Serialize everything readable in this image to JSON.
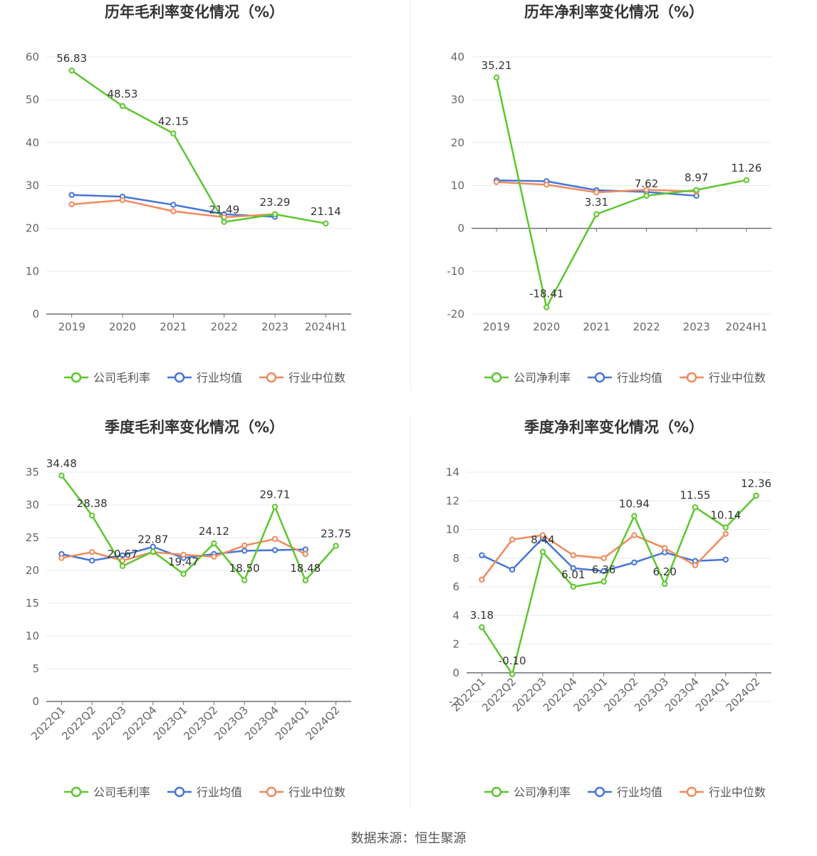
{
  "chart_data": [
    {
      "type": "line",
      "title": "历年毛利率变化情况（%）",
      "categories": [
        "2019",
        "2020",
        "2021",
        "2022",
        "2023",
        "2024H1"
      ],
      "ylim": [
        0,
        60
      ],
      "yticks": [
        0,
        10,
        20,
        30,
        40,
        50,
        60
      ],
      "x_label_rotation": 0,
      "grid": true,
      "legend_position": "bottom",
      "series": [
        {
          "name": "公司毛利率",
          "color": "#5cc72d",
          "values": [
            56.83,
            48.53,
            42.15,
            21.49,
            23.29,
            21.14
          ],
          "labels": [
            "56.83",
            "48.53",
            "42.15",
            "21.49",
            "23.29",
            "21.14"
          ]
        },
        {
          "name": "行业均值",
          "color": "#4575d6",
          "values": [
            27.8,
            27.4,
            25.5,
            23.3,
            22.7,
            null
          ]
        },
        {
          "name": "行业中位数",
          "color": "#f08a5d",
          "values": [
            25.6,
            26.6,
            24.0,
            22.6,
            23.3,
            null
          ]
        }
      ]
    },
    {
      "type": "line",
      "title": "历年净利率变化情况（%）",
      "categories": [
        "2019",
        "2020",
        "2021",
        "2022",
        "2023",
        "2024H1"
      ],
      "ylim": [
        -20,
        40
      ],
      "yticks": [
        -20,
        -10,
        0,
        10,
        20,
        30,
        40
      ],
      "x_label_rotation": 0,
      "grid": true,
      "legend_position": "bottom",
      "series": [
        {
          "name": "公司净利率",
          "color": "#5cc72d",
          "values": [
            35.21,
            -18.41,
            3.31,
            7.62,
            8.97,
            11.26
          ],
          "labels": [
            "35.21",
            "-18.41",
            "3.31",
            "7.62",
            "8.97",
            "11.26"
          ]
        },
        {
          "name": "行业均值",
          "color": "#4575d6",
          "values": [
            11.2,
            11.0,
            8.9,
            8.5,
            7.6,
            null
          ]
        },
        {
          "name": "行业中位数",
          "color": "#f08a5d",
          "values": [
            10.8,
            10.2,
            8.4,
            9.0,
            8.6,
            null
          ]
        }
      ]
    },
    {
      "type": "line",
      "title": "季度毛利率变化情况（%）",
      "categories": [
        "2022Q1",
        "2022Q2",
        "2022Q3",
        "2022Q4",
        "2023Q1",
        "2023Q2",
        "2023Q3",
        "2023Q4",
        "2024Q1",
        "2024Q2"
      ],
      "ylim": [
        0,
        35
      ],
      "yticks": [
        0,
        5,
        10,
        15,
        20,
        25,
        30,
        35
      ],
      "x_label_rotation": -45,
      "grid": true,
      "legend_position": "bottom",
      "series": [
        {
          "name": "公司毛利率",
          "color": "#5cc72d",
          "values": [
            34.48,
            28.38,
            20.67,
            22.87,
            19.47,
            24.12,
            18.5,
            29.71,
            18.48,
            23.75
          ],
          "labels": [
            "34.48",
            "28.38",
            "20.67",
            "22.87",
            "19.47",
            "24.12",
            "18.50",
            "29.71",
            "18.48",
            "23.75"
          ]
        },
        {
          "name": "行业均值",
          "color": "#4575d6",
          "values": [
            22.5,
            21.5,
            22.3,
            23.6,
            21.9,
            22.5,
            23.0,
            23.1,
            23.2,
            null
          ]
        },
        {
          "name": "行业中位数",
          "color": "#f08a5d",
          "values": [
            21.9,
            22.8,
            21.5,
            22.8,
            22.4,
            22.1,
            23.8,
            24.8,
            22.5,
            null
          ]
        }
      ]
    },
    {
      "type": "line",
      "title": "季度净利率变化情况（%）",
      "categories": [
        "2022Q1",
        "2022Q2",
        "2022Q3",
        "2022Q4",
        "2023Q1",
        "2023Q2",
        "2023Q3",
        "2023Q4",
        "2024Q1",
        "2024Q2"
      ],
      "ylim": [
        -2,
        14
      ],
      "yticks": [
        -2,
        0,
        2,
        4,
        6,
        8,
        10,
        12,
        14
      ],
      "x_label_rotation": -45,
      "grid": true,
      "legend_position": "bottom",
      "series": [
        {
          "name": "公司净利率",
          "color": "#5cc72d",
          "values": [
            3.18,
            -0.1,
            8.44,
            6.01,
            6.36,
            10.94,
            6.2,
            11.55,
            10.14,
            12.36
          ],
          "labels": [
            "3.18",
            "-0.10",
            "8.44",
            "6.01",
            "6.36",
            "10.94",
            "6.20",
            "11.55",
            "10.14",
            "12.36"
          ]
        },
        {
          "name": "行业均值",
          "color": "#4575d6",
          "values": [
            8.2,
            7.2,
            9.4,
            7.3,
            7.1,
            7.7,
            8.4,
            7.8,
            7.9,
            null
          ]
        },
        {
          "name": "行业中位数",
          "color": "#f08a5d",
          "values": [
            6.5,
            9.3,
            9.6,
            8.2,
            8.0,
            9.6,
            8.7,
            7.5,
            9.7,
            null
          ]
        }
      ]
    }
  ],
  "footer": {
    "source": "数据来源：恒生聚源"
  }
}
